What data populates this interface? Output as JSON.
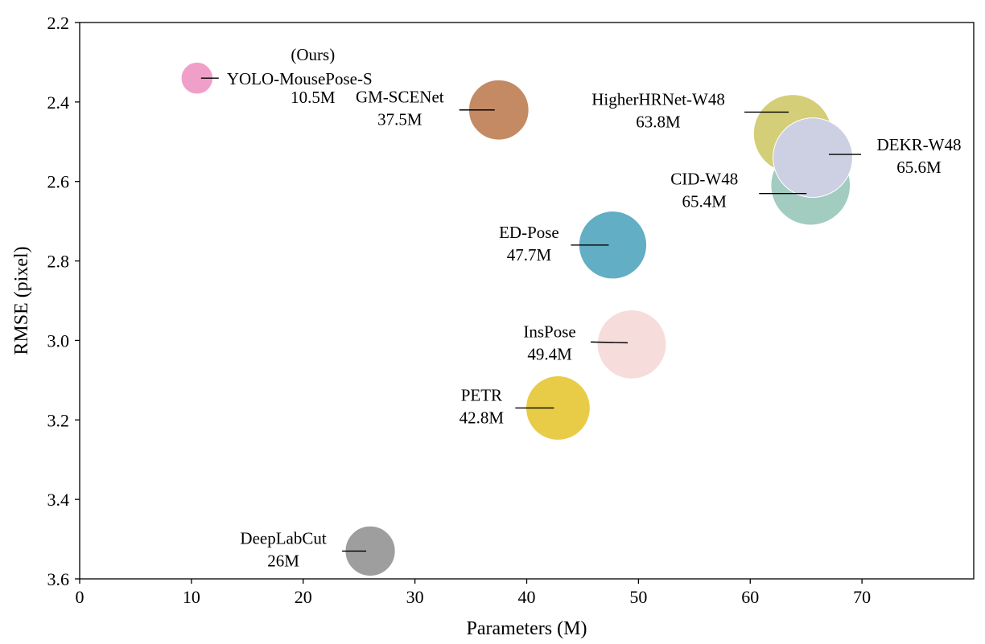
{
  "chart_data": {
    "type": "scatter",
    "title": "",
    "xlabel": "Parameters (M)",
    "ylabel": "RMSE (pixel)",
    "xlim": [
      0,
      80
    ],
    "ylim": [
      2.2,
      3.6
    ],
    "y_inverted": true,
    "x_ticks": [
      "0",
      "10",
      "20",
      "30",
      "40",
      "50",
      "60",
      "70"
    ],
    "y_ticks": [
      "2.2",
      "2.4",
      "2.6",
      "2.8",
      "3.0",
      "3.2",
      "3.4",
      "3.6"
    ],
    "grid": false,
    "legend": "none",
    "bubble_size_encodes": "Parameters (M)",
    "points": [
      {
        "name": "YOLO-MousePose-S",
        "label_lines": [
          "(Ours)",
          "YOLO-MousePose-S",
          "10.5M"
        ],
        "x": 10.5,
        "y": 2.34,
        "color": "#F0A0C8"
      },
      {
        "name": "DeepLabCut",
        "label_lines": [
          "DeepLabCut",
          "26M"
        ],
        "x": 26,
        "y": 3.53,
        "color": "#9E9E9E"
      },
      {
        "name": "GM-SCENet",
        "label_lines": [
          "GM-SCENet",
          "37.5M"
        ],
        "x": 37.5,
        "y": 2.42,
        "color": "#C48A64"
      },
      {
        "name": "PETR",
        "label_lines": [
          "PETR",
          "42.8M"
        ],
        "x": 42.8,
        "y": 3.17,
        "color": "#E8CC48"
      },
      {
        "name": "ED-Pose",
        "label_lines": [
          "ED-Pose",
          "47.7M"
        ],
        "x": 47.7,
        "y": 2.76,
        "color": "#62AEC4"
      },
      {
        "name": "InsPose",
        "label_lines": [
          "InsPose",
          "49.4M"
        ],
        "x": 49.4,
        "y": 3.01,
        "color": "#F7DCDC"
      },
      {
        "name": "HigherHRNet-W48",
        "label_lines": [
          "HigherHRNet-W48",
          "63.8M"
        ],
        "x": 63.8,
        "y": 2.48,
        "color": "#D4CE78"
      },
      {
        "name": "CID-W48",
        "label_lines": [
          "CID-W48",
          "65.4M"
        ],
        "x": 65.4,
        "y": 2.61,
        "color": "#A2CCC0"
      },
      {
        "name": "DEKR-W48",
        "label_lines": [
          "DEKR-W48",
          "65.6M"
        ],
        "x": 65.6,
        "y": 2.54,
        "color": "#CDD0E2"
      }
    ]
  }
}
